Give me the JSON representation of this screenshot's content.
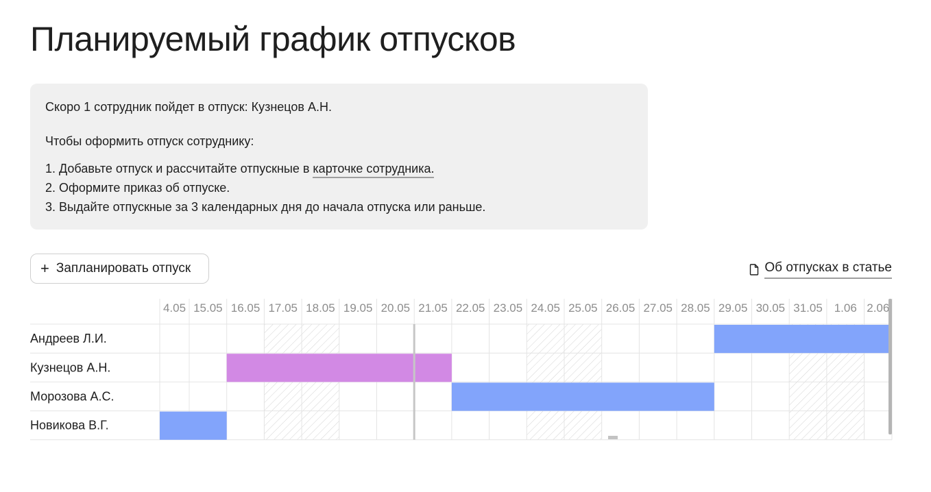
{
  "page": {
    "title": "Планируемый график отпусков"
  },
  "notice": {
    "line1": "Скоро 1 сотрудник пойдет в отпуск: Кузнецов А.Н.",
    "line2": "Чтобы оформить отпуск сотруднику:",
    "step1_prefix": "1. Добавьте отпуск и рассчитайте отпускные в ",
    "step1_link": "карточке сотрудника.",
    "step2": "2. Оформите приказ об отпуске.",
    "step3": "3. Выдайте отпускные за 3 календарных дня до начала отпуска или раньше."
  },
  "toolbar": {
    "plan_button_icon": "plus-icon",
    "plan_button_label": "Запланировать отпуск",
    "article_icon": "document-icon",
    "article_link_label": "Об отпусках в статье"
  },
  "schedule": {
    "days": [
      "4.05",
      "15.05",
      "16.05",
      "17.05",
      "18.05",
      "19.05",
      "20.05",
      "21.05",
      "22.05",
      "23.05",
      "24.05",
      "25.05",
      "26.05",
      "27.05",
      "28.05",
      "29.05",
      "30.05",
      "31.05",
      "1.06",
      "2.06"
    ],
    "weekend_days": [
      "17.05",
      "18.05",
      "24.05",
      "25.05",
      "31.05",
      "1.06"
    ],
    "today": "21.05",
    "employees": [
      {
        "name": "Андреев Л.И.",
        "vacation_from": "29.05",
        "vacation_to": "2.06",
        "color": "#82a4fb"
      },
      {
        "name": "Кузнецов А.Н.",
        "vacation_from": "16.05",
        "vacation_to": "21.05",
        "color": "#d289e4"
      },
      {
        "name": "Морозова А.С.",
        "vacation_from": "22.05",
        "vacation_to": "28.05",
        "color": "#82a4fb"
      },
      {
        "name": "Новикова В.Г.",
        "vacation_from": "4.05",
        "vacation_to": "15.05",
        "color": "#82a4fb"
      }
    ],
    "colors": {
      "grid": "#e4e4e4",
      "header_text": "#8d8d8d",
      "today_line": "#c6c6c6",
      "hatch": "#d4d4d4"
    }
  }
}
